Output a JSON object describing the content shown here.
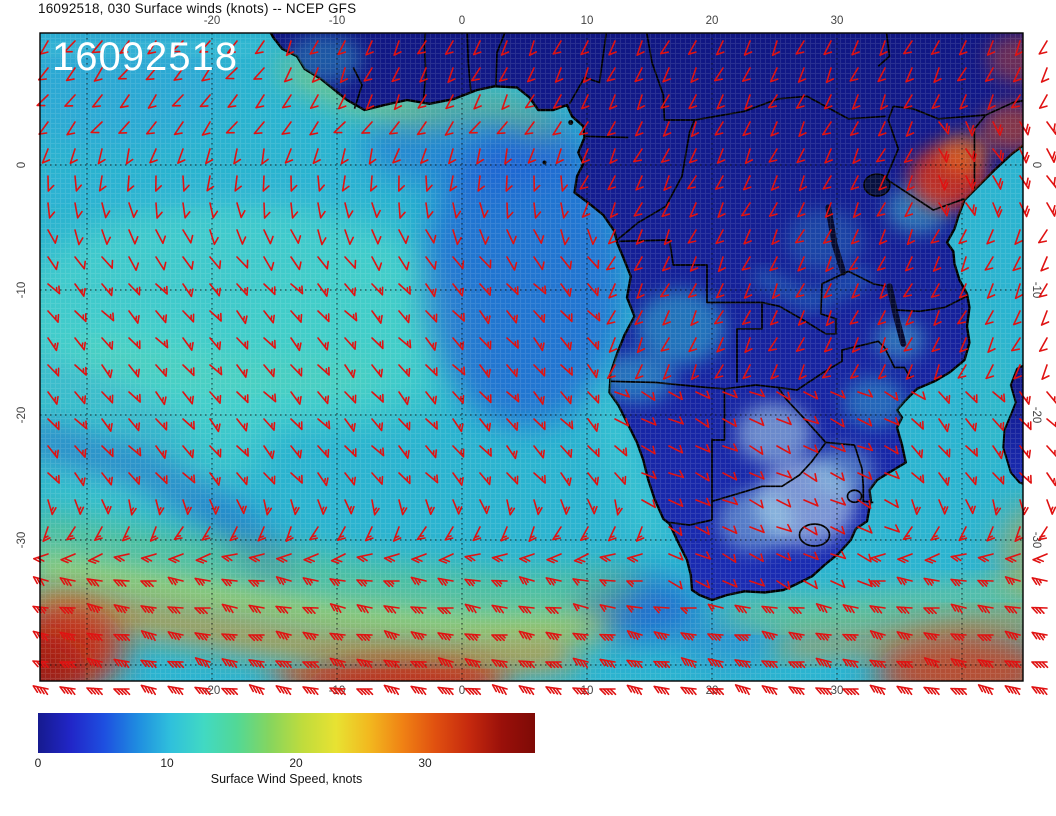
{
  "header": {
    "title": "16092518, 030 Surface winds (knots) -- NCEP GFS"
  },
  "map": {
    "datetime_label": "16092518"
  },
  "axes": {
    "top": [
      "-20",
      "-10",
      "0",
      "10",
      "20",
      "30"
    ],
    "bottom": [
      "-20",
      "-10",
      "0",
      "10",
      "20",
      "30"
    ],
    "left": [
      "0",
      "-10",
      "-20",
      "-30"
    ],
    "right": [
      "0",
      "-10",
      "-20",
      "-30"
    ]
  },
  "colorbar": {
    "caption": "Surface Wind Speed, knots",
    "tick_labels": [
      "0",
      "10",
      "20",
      "30"
    ],
    "gradient": [
      "#161a8f",
      "#2126c8",
      "#1e4fe0",
      "#1f8ce0",
      "#2fc0dc",
      "#41d9c3",
      "#52d896",
      "#86d55e",
      "#c0dc3c",
      "#e8e232",
      "#f2b81f",
      "#f08214",
      "#e05010",
      "#c62a0e",
      "#9a100a",
      "#7e0a06"
    ]
  },
  "style": {
    "barb_color": "#e01212",
    "ocean_color": "#2bb3cf",
    "land_dark": "#101682",
    "land_light": "#1a2cb4"
  }
}
